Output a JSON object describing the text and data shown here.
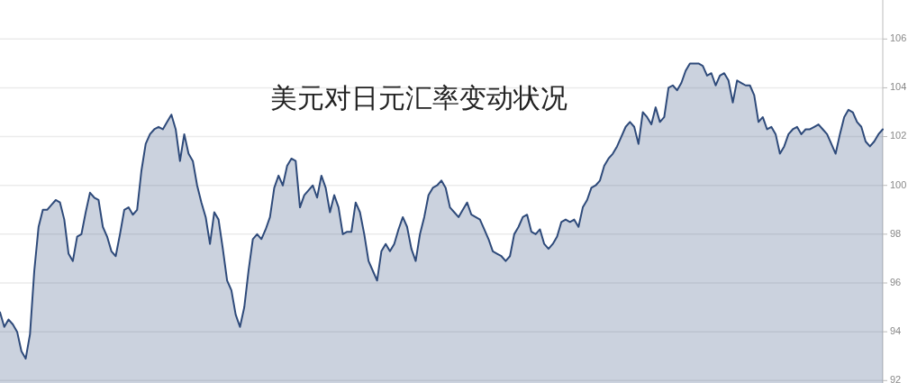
{
  "chart_data": {
    "type": "area",
    "title": "美元对日元汇率变动状况",
    "categories": [
      null,
      null,
      null,
      null,
      null,
      null,
      null,
      null,
      null,
      null,
      null,
      null,
      null,
      null,
      null,
      null,
      null,
      null,
      null,
      null,
      null,
      null,
      null,
      null,
      null,
      null,
      null,
      null,
      null,
      null,
      null,
      null,
      null,
      null,
      null,
      null,
      null,
      null,
      null,
      null,
      null,
      null,
      null,
      null,
      null,
      null,
      null,
      null,
      null,
      null,
      null,
      null,
      null,
      null,
      null,
      null,
      null,
      null,
      null,
      null,
      null,
      null,
      null,
      null,
      null,
      null,
      null,
      null,
      null,
      null,
      null,
      null,
      null,
      null,
      null,
      null,
      null,
      null,
      null,
      null,
      null,
      null,
      null,
      null,
      null,
      null,
      null,
      null,
      null,
      null,
      null,
      null,
      null,
      null,
      null,
      null,
      null,
      null,
      null,
      null,
      null,
      null,
      null,
      null,
      null,
      null,
      null,
      null,
      null,
      null,
      null,
      null,
      null,
      null,
      null,
      null,
      null,
      null,
      null,
      null,
      null,
      null,
      null,
      null,
      null,
      null,
      null,
      null,
      null,
      null,
      null,
      null,
      null,
      null,
      null,
      null,
      null,
      null,
      null,
      null,
      null,
      null,
      null,
      null,
      null,
      null,
      null,
      null,
      null,
      null,
      null,
      null,
      null,
      null,
      null,
      null,
      null,
      null,
      null,
      null,
      null,
      null,
      null,
      null,
      null,
      null,
      null,
      null,
      null,
      null,
      null,
      null,
      null,
      null,
      null,
      null,
      null,
      null,
      null,
      null,
      null,
      null,
      null,
      null,
      null,
      null,
      null,
      null,
      null,
      null,
      null,
      null,
      null,
      null,
      null,
      null,
      null,
      null,
      null,
      null,
      null,
      null,
      null,
      null,
      null,
      null,
      null
    ],
    "series": [
      {
        "color": "#2e4a7a",
        "values": [
          94.8,
          94.2,
          94.5,
          94.3,
          94.0,
          93.2,
          92.9,
          93.9,
          96.5,
          98.3,
          99.0,
          99.0,
          99.2,
          99.4,
          99.3,
          98.6,
          97.2,
          96.9,
          97.9,
          98.0,
          98.9,
          99.7,
          99.5,
          99.4,
          98.3,
          97.9,
          97.3,
          97.1,
          98.0,
          99.0,
          99.1,
          98.8,
          99.0,
          100.6,
          101.7,
          102.1,
          102.3,
          102.4,
          102.3,
          102.6,
          102.9,
          102.3,
          101.0,
          102.1,
          101.3,
          101.0,
          100.0,
          99.3,
          98.7,
          97.6,
          98.9,
          98.6,
          97.4,
          96.1,
          95.7,
          94.7,
          94.2,
          95.0,
          96.5,
          97.8,
          98.0,
          97.8,
          98.2,
          98.7,
          99.9,
          100.4,
          100.0,
          100.8,
          101.1,
          101.0,
          99.1,
          99.6,
          99.8,
          100.0,
          99.5,
          100.4,
          99.9,
          98.9,
          99.6,
          99.1,
          98.0,
          98.1,
          98.1,
          99.3,
          98.9,
          98.0,
          96.9,
          96.5,
          96.1,
          97.3,
          97.6,
          97.3,
          97.6,
          98.2,
          98.7,
          98.3,
          97.4,
          96.9,
          98.0,
          98.7,
          99.6,
          99.9,
          100.0,
          100.2,
          99.9,
          99.1,
          98.9,
          98.7,
          99.0,
          99.3,
          98.8,
          98.7,
          98.6,
          98.2,
          97.8,
          97.3,
          97.2,
          97.1,
          96.9,
          97.1,
          98.0,
          98.3,
          98.7,
          98.8,
          98.1,
          98.0,
          98.2,
          97.6,
          97.4,
          97.6,
          97.9,
          98.5,
          98.6,
          98.5,
          98.6,
          98.3,
          99.1,
          99.4,
          99.9,
          100.0,
          100.2,
          100.8,
          101.1,
          101.3,
          101.6,
          102.0,
          102.4,
          102.6,
          102.4,
          101.7,
          103.0,
          102.8,
          102.5,
          103.2,
          102.6,
          102.8,
          104.0,
          104.1,
          103.9,
          104.2,
          104.7,
          105.0,
          105.0,
          105.0,
          104.9,
          104.5,
          104.6,
          104.1,
          104.5,
          104.6,
          104.3,
          103.4,
          104.3,
          104.2,
          104.1,
          104.1,
          103.7,
          102.6,
          102.8,
          102.3,
          102.4,
          102.1,
          101.3,
          101.6,
          102.1,
          102.3,
          102.4,
          102.1,
          102.3,
          102.3,
          102.4,
          102.5,
          102.3,
          102.1,
          101.7,
          101.3,
          102.1,
          102.8,
          103.1,
          103.0,
          102.6,
          102.4,
          101.8,
          101.6,
          101.8,
          102.1,
          102.3
        ]
      }
    ],
    "ylim": [
      91.9,
      107.6
    ],
    "yticks": [
      92,
      94,
      96,
      98,
      100,
      102,
      104,
      106
    ],
    "grid": "y",
    "tick_labels": "y"
  }
}
